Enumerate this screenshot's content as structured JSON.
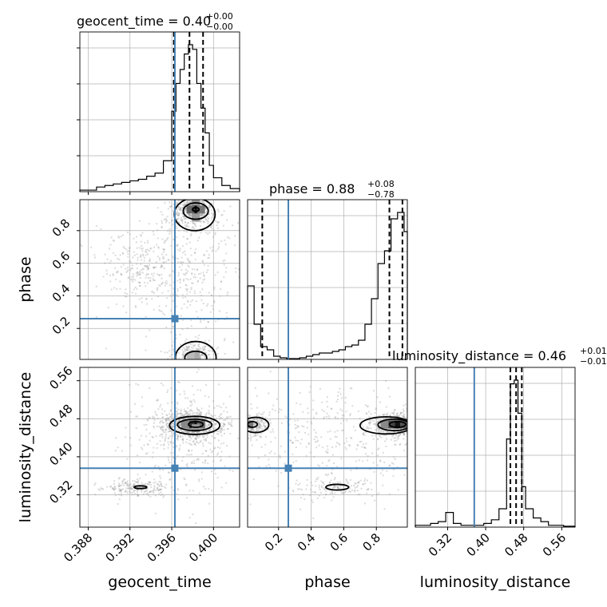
{
  "chart_data": {
    "type": "corner",
    "parameters": [
      "geocent_time",
      "phase",
      "luminosity_distance"
    ],
    "truths": {
      "geocent_time": 0.3963,
      "phase": 0.26,
      "luminosity_distance": 0.376
    },
    "axes": {
      "geocent_time": {
        "label": "geocent_time",
        "lim": [
          0.3872,
          0.4025
        ],
        "ticks": [
          0.388,
          0.392,
          0.396,
          0.4
        ],
        "tick_labels": [
          "0.388",
          "0.392",
          "0.396",
          "0.400"
        ]
      },
      "phase": {
        "label": "phase",
        "lim": [
          0.01,
          0.99
        ],
        "ticks": [
          0.2,
          0.4,
          0.6,
          0.8
        ],
        "tick_labels": [
          "0.2",
          "0.4",
          "0.6",
          "0.8"
        ]
      },
      "luminosity_distance": {
        "label": "luminosity_distance",
        "lim": [
          0.252,
          0.588
        ],
        "ticks": [
          0.32,
          0.4,
          0.48,
          0.56
        ],
        "tick_labels": [
          "0.32",
          "0.40",
          "0.48",
          "0.56"
        ]
      }
    },
    "titles": {
      "geocent_time": {
        "prefix": "geocent_time = 0.40",
        "sup": "+0.00",
        "sub": "−0.00"
      },
      "phase": {
        "prefix": "phase = 0.88",
        "sup": "+0.08",
        "sub": "−0.78"
      },
      "luminosity_distance": {
        "prefix": "luminosity_distance = 0.46",
        "sup": "+0.01",
        "sub": "−0.01"
      }
    },
    "histograms": {
      "geocent_time": {
        "edges": [
          0.3872,
          0.388,
          0.3888,
          0.3896,
          0.3904,
          0.3912,
          0.392,
          0.3928,
          0.3936,
          0.3944,
          0.3952,
          0.396,
          0.3964,
          0.3968,
          0.3972,
          0.3976,
          0.398,
          0.3984,
          0.3988,
          0.3992,
          0.3996,
          0.4,
          0.4008,
          0.4016,
          0.4025
        ],
        "counts": [
          1,
          1,
          3,
          4,
          5,
          6,
          7,
          8,
          10,
          12,
          20,
          52,
          70,
          79,
          89,
          95,
          92,
          70,
          54,
          38,
          17,
          9,
          4,
          2
        ],
        "quantiles": [
          0.3962,
          0.3977,
          0.399
        ]
      },
      "phase": {
        "edges": [
          0.01,
          0.05,
          0.09,
          0.13,
          0.17,
          0.21,
          0.25,
          0.29,
          0.33,
          0.37,
          0.41,
          0.45,
          0.49,
          0.53,
          0.57,
          0.61,
          0.65,
          0.69,
          0.73,
          0.77,
          0.81,
          0.85,
          0.89,
          0.93,
          0.97,
          0.99
        ],
        "counts": [
          46,
          22,
          8,
          6,
          2,
          1,
          0.5,
          0.5,
          1,
          2,
          3,
          4,
          4,
          5,
          6,
          8,
          9,
          12,
          22,
          38,
          60,
          68,
          88,
          92,
          80
        ],
        "quantiles": [
          0.1,
          0.88,
          0.96
        ]
      },
      "luminosity_distance": {
        "edges": [
          0.252,
          0.268,
          0.284,
          0.3,
          0.316,
          0.332,
          0.348,
          0.364,
          0.38,
          0.396,
          0.412,
          0.428,
          0.444,
          0.452,
          0.46,
          0.468,
          0.476,
          0.484,
          0.5,
          0.516,
          0.532,
          0.548,
          0.564,
          0.588
        ],
        "counts": [
          1,
          1,
          2,
          3,
          8,
          2,
          1,
          1,
          1,
          2,
          4,
          10,
          48,
          78,
          80,
          62,
          22,
          10,
          5,
          3,
          1,
          1,
          0.5
        ],
        "quantiles": [
          0.452,
          0.464,
          0.476
        ]
      }
    }
  }
}
